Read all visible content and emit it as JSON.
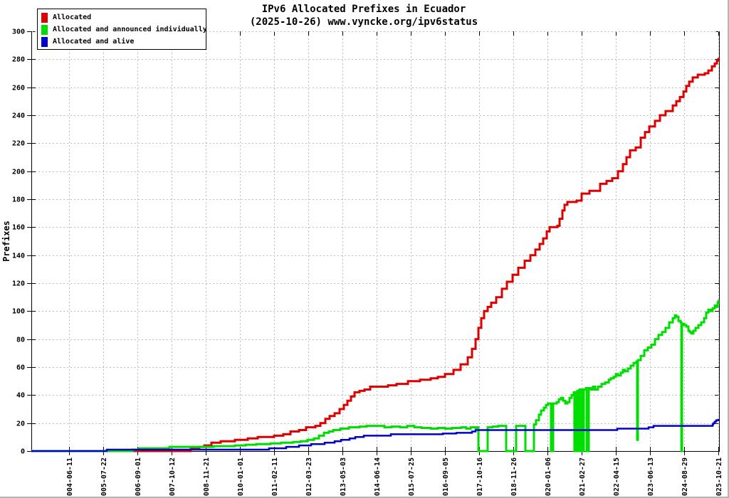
{
  "title": {
    "line1": "IPv6 Allocated Prefixes in Ecuador",
    "line2": "(2025-10-26) www.vyncke.org/ipv6status"
  },
  "y_axis_label": "Prefixes",
  "legend": {
    "items": [
      {
        "label": "Allocated",
        "color": "#dd0000"
      },
      {
        "label": "Allocated and announced individually",
        "color": "#00dd00"
      },
      {
        "label": "Allocated and alive",
        "color": "#0000cc"
      }
    ]
  },
  "chart_data": {
    "type": "line",
    "title": "IPv6 Allocated Prefixes in Ecuador",
    "subtitle": "(2025-10-26) www.vyncke.org/ipv6status",
    "xlabel": "",
    "ylabel": "Prefixes",
    "ylim": [
      0,
      300
    ],
    "yticks": [
      0,
      20,
      40,
      60,
      80,
      100,
      120,
      140,
      160,
      180,
      200,
      220,
      240,
      260,
      280,
      300
    ],
    "grid": true,
    "grid_color": "#bdbdbd",
    "legend_position": "top-left",
    "line_style": "steps",
    "x_tick_labels": [
      "2004-06-11",
      "2005-07-22",
      "2006-09-01",
      "2007-10-12",
      "2008-11-21",
      "2010-01-01",
      "2011-02-11",
      "2012-03-23",
      "2013-05-03",
      "2014-06-14",
      "2015-07-25",
      "2016-09-05",
      "2017-10-16",
      "2018-11-26",
      "2020-01-06",
      "2021-02-27",
      "2022-04-15",
      "2023-06-13",
      "2024-08-29",
      "2025-10-21"
    ],
    "x_tick_first_frac": 0.0549,
    "x_tick_step_frac": 0.0497,
    "series": [
      {
        "name": "Allocated",
        "color": "#dd0000",
        "width": 3,
        "points": [
          [
            0.0,
            0
          ],
          [
            0.2256,
            0
          ],
          [
            0.2319,
            2
          ],
          [
            0.2443,
            3
          ],
          [
            0.2516,
            4
          ],
          [
            0.2619,
            6
          ],
          [
            0.2754,
            7
          ],
          [
            0.2961,
            8
          ],
          [
            0.3147,
            9
          ],
          [
            0.3292,
            10
          ],
          [
            0.353,
            11
          ],
          [
            0.3664,
            12
          ],
          [
            0.3768,
            14
          ],
          [
            0.3892,
            15
          ],
          [
            0.3995,
            17
          ],
          [
            0.413,
            18
          ],
          [
            0.4203,
            20
          ],
          [
            0.4275,
            23
          ],
          [
            0.4337,
            25
          ],
          [
            0.441,
            27
          ],
          [
            0.4482,
            30
          ],
          [
            0.4544,
            33
          ],
          [
            0.4596,
            36
          ],
          [
            0.4648,
            39
          ],
          [
            0.47,
            42
          ],
          [
            0.4772,
            43
          ],
          [
            0.4845,
            44
          ],
          [
            0.4928,
            46
          ],
          [
            0.5186,
            47
          ],
          [
            0.5311,
            48
          ],
          [
            0.5476,
            50
          ],
          [
            0.5652,
            51
          ],
          [
            0.5807,
            52
          ],
          [
            0.5911,
            53
          ],
          [
            0.6014,
            55
          ],
          [
            0.6139,
            58
          ],
          [
            0.6242,
            62
          ],
          [
            0.6346,
            67
          ],
          [
            0.6408,
            73
          ],
          [
            0.646,
            80
          ],
          [
            0.6501,
            88
          ],
          [
            0.6542,
            95
          ],
          [
            0.6584,
            100
          ],
          [
            0.6636,
            103
          ],
          [
            0.6687,
            106
          ],
          [
            0.676,
            110
          ],
          [
            0.6843,
            116
          ],
          [
            0.6915,
            121
          ],
          [
            0.6998,
            126
          ],
          [
            0.7081,
            131
          ],
          [
            0.7174,
            136
          ],
          [
            0.7257,
            140
          ],
          [
            0.7329,
            144
          ],
          [
            0.7391,
            148
          ],
          [
            0.7443,
            152
          ],
          [
            0.7495,
            157
          ],
          [
            0.7536,
            160
          ],
          [
            0.765,
            161
          ],
          [
            0.7681,
            166
          ],
          [
            0.7723,
            172
          ],
          [
            0.7754,
            176
          ],
          [
            0.7795,
            178
          ],
          [
            0.793,
            179
          ],
          [
            0.8002,
            184
          ],
          [
            0.8116,
            186
          ],
          [
            0.8271,
            191
          ],
          [
            0.8364,
            193
          ],
          [
            0.8447,
            195
          ],
          [
            0.853,
            200
          ],
          [
            0.8602,
            205
          ],
          [
            0.8654,
            210
          ],
          [
            0.8706,
            215
          ],
          [
            0.8789,
            217
          ],
          [
            0.8861,
            224
          ],
          [
            0.8923,
            228
          ],
          [
            0.8985,
            232
          ],
          [
            0.9068,
            236
          ],
          [
            0.9141,
            240
          ],
          [
            0.9223,
            243
          ],
          [
            0.9327,
            247
          ],
          [
            0.9379,
            250
          ],
          [
            0.9431,
            253
          ],
          [
            0.9483,
            257
          ],
          [
            0.9524,
            261
          ],
          [
            0.9566,
            264
          ],
          [
            0.9617,
            267
          ],
          [
            0.969,
            269
          ],
          [
            0.9793,
            270
          ],
          [
            0.9845,
            272
          ],
          [
            0.9896,
            275
          ],
          [
            0.9938,
            277
          ],
          [
            0.9969,
            279
          ],
          [
            0.999,
            281
          ]
        ]
      },
      {
        "name": "Allocated and announced individually",
        "color": "#00dd00",
        "width": 3,
        "points": [
          [
            0.0,
            0
          ],
          [
            0.1439,
            0
          ],
          [
            0.147,
            1
          ],
          [
            0.1563,
            2
          ],
          [
            0.1925,
            2
          ],
          [
            0.2008,
            3
          ],
          [
            0.265,
            3.5
          ],
          [
            0.2961,
            4
          ],
          [
            0.3116,
            4.5
          ],
          [
            0.3271,
            5
          ],
          [
            0.3478,
            5.5
          ],
          [
            0.3633,
            6
          ],
          [
            0.3809,
            6.5
          ],
          [
            0.3913,
            7
          ],
          [
            0.4016,
            8
          ],
          [
            0.411,
            9
          ],
          [
            0.4182,
            11
          ],
          [
            0.4255,
            13
          ],
          [
            0.4327,
            14
          ],
          [
            0.4389,
            15
          ],
          [
            0.4493,
            16
          ],
          [
            0.4617,
            17
          ],
          [
            0.4772,
            17.5
          ],
          [
            0.4876,
            18
          ],
          [
            0.5031,
            18
          ],
          [
            0.5135,
            17
          ],
          [
            0.5238,
            17.5
          ],
          [
            0.5362,
            17
          ],
          [
            0.5466,
            18
          ],
          [
            0.5569,
            17
          ],
          [
            0.5673,
            16.5
          ],
          [
            0.5807,
            16
          ],
          [
            0.5911,
            16.5
          ],
          [
            0.6014,
            16
          ],
          [
            0.6118,
            16.5
          ],
          [
            0.6253,
            17
          ],
          [
            0.6325,
            16
          ],
          [
            0.6387,
            17
          ],
          [
            0.646,
            16.5
          ],
          [
            0.6491,
            17
          ],
          [
            0.6501,
            0
          ],
          [
            0.6625,
            0
          ],
          [
            0.6636,
            17
          ],
          [
            0.6708,
            17.5
          ],
          [
            0.6791,
            18
          ],
          [
            0.6894,
            18
          ],
          [
            0.6905,
            0
          ],
          [
            0.7039,
            0
          ],
          [
            0.705,
            18
          ],
          [
            0.7164,
            18
          ],
          [
            0.7184,
            0
          ],
          [
            0.7288,
            0
          ],
          [
            0.7308,
            19
          ],
          [
            0.7339,
            22
          ],
          [
            0.7381,
            26
          ],
          [
            0.7412,
            29
          ],
          [
            0.7453,
            31
          ],
          [
            0.7484,
            33
          ],
          [
            0.7515,
            34
          ],
          [
            0.7546,
            34
          ],
          [
            0.7557,
            0
          ],
          [
            0.7578,
            0
          ],
          [
            0.7588,
            34
          ],
          [
            0.764,
            35
          ],
          [
            0.7671,
            37
          ],
          [
            0.7702,
            38
          ],
          [
            0.7733,
            36
          ],
          [
            0.7764,
            34
          ],
          [
            0.7795,
            35
          ],
          [
            0.7826,
            38
          ],
          [
            0.7857,
            40
          ],
          [
            0.7888,
            42
          ],
          [
            0.7898,
            0
          ],
          [
            0.7909,
            42
          ],
          [
            0.7929,
            0
          ],
          [
            0.794,
            43
          ],
          [
            0.796,
            0
          ],
          [
            0.7971,
            44
          ],
          [
            0.7992,
            0
          ],
          [
            0.8002,
            44
          ],
          [
            0.8023,
            0
          ],
          [
            0.8033,
            44
          ],
          [
            0.8064,
            45
          ],
          [
            0.8075,
            0
          ],
          [
            0.8095,
            0
          ],
          [
            0.8106,
            45
          ],
          [
            0.8137,
            44
          ],
          [
            0.8168,
            46
          ],
          [
            0.8199,
            44
          ],
          [
            0.824,
            46
          ],
          [
            0.8292,
            48
          ],
          [
            0.8344,
            49
          ],
          [
            0.8396,
            51
          ],
          [
            0.8427,
            52
          ],
          [
            0.8468,
            53
          ],
          [
            0.8499,
            55
          ],
          [
            0.853,
            54
          ],
          [
            0.8571,
            56
          ],
          [
            0.8602,
            58
          ],
          [
            0.8633,
            57
          ],
          [
            0.8675,
            59
          ],
          [
            0.8716,
            61
          ],
          [
            0.8758,
            63
          ],
          [
            0.8799,
            64
          ],
          [
            0.881,
            8
          ],
          [
            0.882,
            65
          ],
          [
            0.8861,
            68
          ],
          [
            0.8913,
            72
          ],
          [
            0.8965,
            74
          ],
          [
            0.9017,
            76
          ],
          [
            0.9068,
            80
          ],
          [
            0.912,
            83
          ],
          [
            0.9172,
            85
          ],
          [
            0.9223,
            88
          ],
          [
            0.9275,
            92
          ],
          [
            0.9327,
            95
          ],
          [
            0.9358,
            97
          ],
          [
            0.9379,
            96
          ],
          [
            0.941,
            93
          ],
          [
            0.9441,
            92
          ],
          [
            0.9452,
            0
          ],
          [
            0.9462,
            91
          ],
          [
            0.9493,
            90
          ],
          [
            0.9524,
            89
          ],
          [
            0.9555,
            86
          ],
          [
            0.9575,
            85
          ],
          [
            0.9596,
            84
          ],
          [
            0.9627,
            86
          ],
          [
            0.9658,
            88
          ],
          [
            0.97,
            90
          ],
          [
            0.9741,
            92
          ],
          [
            0.9783,
            95
          ],
          [
            0.9814,
            99
          ],
          [
            0.9845,
            101
          ],
          [
            0.9876,
            100
          ],
          [
            0.9907,
            102
          ],
          [
            0.9938,
            104
          ],
          [
            0.9959,
            103
          ],
          [
            0.9979,
            106
          ],
          [
            0.999,
            108
          ]
        ]
      },
      {
        "name": "Allocated and alive",
        "color": "#0000cc",
        "width": 2.5,
        "points": [
          [
            0.0,
            0
          ],
          [
            0.1097,
            1
          ],
          [
            0.3375,
            1
          ],
          [
            0.3458,
            2
          ],
          [
            0.3665,
            2
          ],
          [
            0.3706,
            3
          ],
          [
            0.3851,
            3
          ],
          [
            0.3892,
            4
          ],
          [
            0.4027,
            4
          ],
          [
            0.4068,
            5
          ],
          [
            0.4224,
            5
          ],
          [
            0.4265,
            6
          ],
          [
            0.4368,
            6
          ],
          [
            0.441,
            7
          ],
          [
            0.4482,
            7
          ],
          [
            0.4503,
            8
          ],
          [
            0.4596,
            8
          ],
          [
            0.4627,
            9
          ],
          [
            0.4679,
            9
          ],
          [
            0.471,
            10
          ],
          [
            0.4803,
            10
          ],
          [
            0.4834,
            11
          ],
          [
            0.5197,
            11
          ],
          [
            0.5228,
            12
          ],
          [
            0.5942,
            12
          ],
          [
            0.5983,
            12.5
          ],
          [
            0.6149,
            12.5
          ],
          [
            0.618,
            13
          ],
          [
            0.6377,
            13
          ],
          [
            0.6408,
            14
          ],
          [
            0.6439,
            14
          ],
          [
            0.646,
            15
          ],
          [
            0.8489,
            15
          ],
          [
            0.852,
            16
          ],
          [
            0.8944,
            16
          ],
          [
            0.8975,
            17
          ],
          [
            0.9027,
            17
          ],
          [
            0.9048,
            18
          ],
          [
            0.9886,
            18
          ],
          [
            0.9907,
            19
          ],
          [
            0.9917,
            20
          ],
          [
            0.9938,
            21
          ],
          [
            0.9959,
            22
          ],
          [
            0.999,
            23
          ]
        ]
      }
    ]
  }
}
